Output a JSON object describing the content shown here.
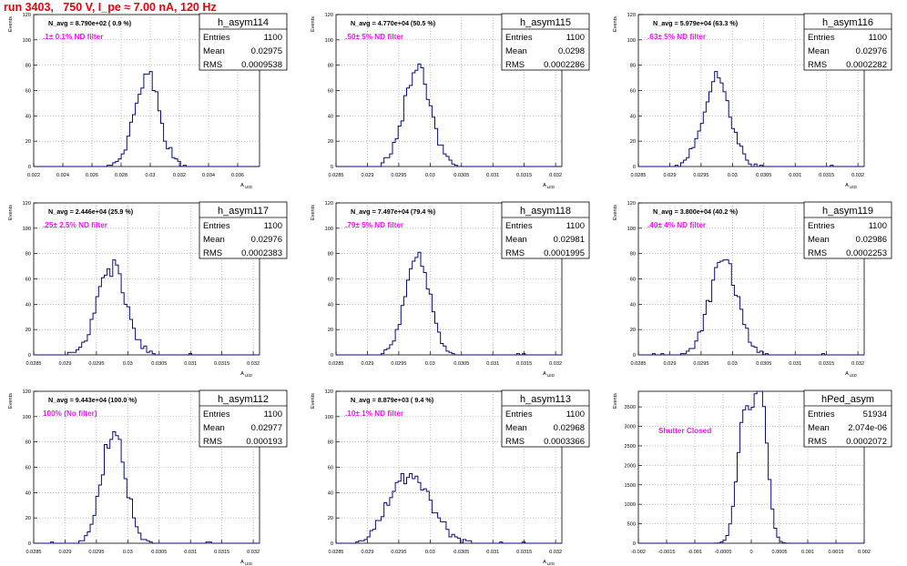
{
  "run_title": "run 3403,   750 V, I_pe ≈ 7.00 nA, 120 Hz",
  "colors": {
    "histogram": "#0a0a7a",
    "filter_label": "#e619e6",
    "run_title": "#e8000b",
    "grid": "#9a9a9a"
  },
  "stats_labels": {
    "entries": "Entries",
    "mean": "Mean",
    "rms": "RMS"
  },
  "chart_data": [
    {
      "type": "histogram",
      "name": "h_asym114",
      "navg": "N_avg = 8.790e+02 ( 0.9 %)",
      "label": ".1± 0.1% ND filter",
      "entries": "1100",
      "mean": "0.02975",
      "rms": "0.0009538",
      "xlabel": "A_LED",
      "ylabel": "Events",
      "xlim": [
        0.022,
        0.0375
      ],
      "ylim": [
        0,
        120
      ],
      "xticks": [
        0.022,
        0.024,
        0.026,
        0.028,
        0.03,
        0.032,
        0.034,
        0.036
      ],
      "xtick_labels": [
        "0.022",
        "0.024",
        "0.026",
        "0.028",
        "0.03",
        "0.032",
        "0.034",
        "0.036"
      ],
      "yticks": [
        0,
        20,
        40,
        60,
        80,
        100,
        120
      ],
      "ytick_labels": [
        "0",
        "20",
        "40",
        "60",
        "80",
        "100",
        "120"
      ],
      "shape": {
        "center": 0.0298,
        "sigma": 0.00085,
        "peak": 72,
        "bins": 80,
        "seed": 11
      },
      "grid": true
    },
    {
      "type": "histogram",
      "name": "h_asym115",
      "navg": "N_avg = 4.770e+04 (50.5 %)",
      "label": ".50± 5% ND filter",
      "entries": "1100",
      "mean": "0.0298",
      "rms": "0.0002286",
      "xlabel": "A_LED",
      "ylabel": "Events",
      "xlim": [
        0.0285,
        0.0321
      ],
      "ylim": [
        0,
        120
      ],
      "xticks": [
        0.0285,
        0.029,
        0.0295,
        0.03,
        0.0305,
        0.031,
        0.0315,
        0.032
      ],
      "xtick_labels": [
        "0.0285",
        "0.029",
        "0.0295",
        "0.03",
        "0.0305",
        "0.031",
        "0.0315",
        "0.032"
      ],
      "yticks": [
        0,
        20,
        40,
        60,
        80,
        100,
        120
      ],
      "ytick_labels": [
        "0",
        "20",
        "40",
        "60",
        "80",
        "100",
        "120"
      ],
      "shape": {
        "center": 0.02979,
        "sigma": 0.00022,
        "peak": 76,
        "bins": 80,
        "seed": 23
      },
      "grid": true
    },
    {
      "type": "histogram",
      "name": "h_asym116",
      "navg": "N_avg = 5.979e+04 (63.3 %)",
      "label": ".63± 5% ND filter",
      "entries": "1100",
      "mean": "0.02976",
      "rms": "0.0002282",
      "xlabel": "A_LED",
      "ylabel": "Events",
      "xlim": [
        0.0285,
        0.0321
      ],
      "ylim": [
        0,
        120
      ],
      "xticks": [
        0.0285,
        0.029,
        0.0295,
        0.03,
        0.0305,
        0.031,
        0.0315,
        0.032
      ],
      "xtick_labels": [
        "0.0285",
        "0.029",
        "0.0295",
        "0.03",
        "0.0305",
        "0.031",
        "0.0315",
        "0.032"
      ],
      "yticks": [
        0,
        20,
        40,
        60,
        80,
        100,
        120
      ],
      "ytick_labels": [
        "0",
        "20",
        "40",
        "60",
        "80",
        "100",
        "120"
      ],
      "shape": {
        "center": 0.02975,
        "sigma": 0.00022,
        "peak": 68,
        "bins": 80,
        "seed": 37
      },
      "grid": true
    },
    {
      "type": "histogram",
      "name": "h_asym117",
      "navg": "N_avg = 2.446e+04 (25.9 %)",
      "label": ".25± 2.5% ND filter",
      "entries": "1100",
      "mean": "0.02976",
      "rms": "0.0002383",
      "xlabel": "A_LED",
      "ylabel": "Events",
      "xlim": [
        0.0285,
        0.0321
      ],
      "ylim": [
        0,
        120
      ],
      "xticks": [
        0.0285,
        0.029,
        0.0295,
        0.03,
        0.0305,
        0.031,
        0.0315,
        0.032
      ],
      "xtick_labels": [
        "0.0285",
        "0.029",
        "0.0295",
        "0.03",
        "0.0305",
        "0.031",
        "0.0315",
        "0.032"
      ],
      "yticks": [
        0,
        20,
        40,
        60,
        80,
        100,
        120
      ],
      "ytick_labels": [
        "0",
        "20",
        "40",
        "60",
        "80",
        "100",
        "120"
      ],
      "shape": {
        "center": 0.02975,
        "sigma": 0.00023,
        "peak": 70,
        "bins": 80,
        "seed": 41
      },
      "grid": true
    },
    {
      "type": "histogram",
      "name": "h_asym118",
      "navg": "N_avg = 7.497e+04 (79.4 %)",
      "label": ".79± 5% ND filter",
      "entries": "1100",
      "mean": "0.02981",
      "rms": "0.0001995",
      "xlabel": "A_LED",
      "ylabel": "Events",
      "xlim": [
        0.0285,
        0.0321
      ],
      "ylim": [
        0,
        120
      ],
      "xticks": [
        0.0285,
        0.029,
        0.0295,
        0.03,
        0.0305,
        0.031,
        0.0315,
        0.032
      ],
      "xtick_labels": [
        "0.0285",
        "0.029",
        "0.0295",
        "0.03",
        "0.0305",
        "0.031",
        "0.0315",
        "0.032"
      ],
      "yticks": [
        0,
        20,
        40,
        60,
        80,
        100,
        120
      ],
      "ytick_labels": [
        "0",
        "20",
        "40",
        "60",
        "80",
        "100",
        "120"
      ],
      "shape": {
        "center": 0.0298,
        "sigma": 0.0002,
        "peak": 76,
        "bins": 80,
        "seed": 53
      },
      "grid": true
    },
    {
      "type": "histogram",
      "name": "h_asym119",
      "navg": "N_avg = 3.800e+04 (40.2 %)",
      "label": ".40± 4% ND filter",
      "entries": "1100",
      "mean": "0.02986",
      "rms": "0.0002253",
      "xlabel": "A_LED",
      "ylabel": "Events",
      "xlim": [
        0.0285,
        0.0321
      ],
      "ylim": [
        0,
        120
      ],
      "xticks": [
        0.0285,
        0.029,
        0.0295,
        0.03,
        0.0305,
        0.031,
        0.0315,
        0.032
      ],
      "xtick_labels": [
        "0.0285",
        "0.029",
        "0.0295",
        "0.03",
        "0.0305",
        "0.031",
        "0.0315",
        "0.032"
      ],
      "yticks": [
        0,
        20,
        40,
        60,
        80,
        100,
        120
      ],
      "ytick_labels": [
        "0",
        "20",
        "40",
        "60",
        "80",
        "100",
        "120"
      ],
      "shape": {
        "center": 0.02985,
        "sigma": 0.00022,
        "peak": 75,
        "bins": 80,
        "seed": 67
      },
      "grid": true
    },
    {
      "type": "histogram",
      "name": "h_asym112",
      "navg": "N_avg = 9.443e+04 (100.0 %)",
      "label": "100% (No filter)",
      "entries": "1100",
      "mean": "0.02977",
      "rms": "0.000193",
      "xlabel": "A_LED",
      "ylabel": "Events",
      "xlim": [
        0.0285,
        0.0321
      ],
      "ylim": [
        0,
        120
      ],
      "xticks": [
        0.0285,
        0.029,
        0.0295,
        0.03,
        0.0305,
        0.031,
        0.0315,
        0.032
      ],
      "xtick_labels": [
        "0.0285",
        "0.029",
        "0.0295",
        "0.03",
        "0.0305",
        "0.031",
        "0.0315",
        "0.032"
      ],
      "yticks": [
        0,
        20,
        40,
        60,
        80,
        100,
        120
      ],
      "ytick_labels": [
        "0",
        "20",
        "40",
        "60",
        "80",
        "100",
        "120"
      ],
      "shape": {
        "center": 0.02977,
        "sigma": 0.00019,
        "peak": 88,
        "bins": 80,
        "seed": 79
      },
      "grid": true
    },
    {
      "type": "histogram",
      "name": "h_asym113",
      "navg": "N_avg = 8.879e+03 ( 9.4 %)",
      "label": ".10± 1% ND filter",
      "entries": "1100",
      "mean": "0.02968",
      "rms": "0.0003366",
      "xlabel": "A_LED",
      "ylabel": "Events",
      "xlim": [
        0.0285,
        0.0321
      ],
      "ylim": [
        0,
        120
      ],
      "xticks": [
        0.0285,
        0.029,
        0.0295,
        0.03,
        0.0305,
        0.031,
        0.0315,
        0.032
      ],
      "xtick_labels": [
        "0.0285",
        "0.029",
        "0.0295",
        "0.03",
        "0.0305",
        "0.031",
        "0.0315",
        "0.032"
      ],
      "yticks": [
        0,
        20,
        40,
        60,
        80,
        100,
        120
      ],
      "ytick_labels": [
        "0",
        "20",
        "40",
        "60",
        "80",
        "100",
        "120"
      ],
      "shape": {
        "center": 0.02968,
        "sigma": 0.00033,
        "peak": 55,
        "bins": 80,
        "seed": 97
      },
      "grid": true
    },
    {
      "type": "histogram",
      "name": "hPed_asym",
      "navg": "",
      "label": "Shutter Closed",
      "entries": "51934",
      "mean": "2.074e-06",
      "rms": "0.0002072",
      "xlabel": "",
      "ylabel": "Events",
      "xlim": [
        -0.002,
        0.002
      ],
      "ylim": [
        0,
        3900
      ],
      "xticks": [
        -0.002,
        -0.0015,
        -0.001,
        -0.0005,
        0,
        0.0005,
        0.001,
        0.0015,
        0.002
      ],
      "xtick_labels": [
        "-0.002",
        "-0.0015",
        "-0.001",
        "-0.0005",
        "0",
        "0.0005",
        "0.001",
        "0.0015",
        "0.002"
      ],
      "yticks": [
        0,
        500,
        1000,
        1500,
        2000,
        2500,
        3000,
        3500
      ],
      "ytick_labels": [
        "0",
        "500",
        "1000",
        "1500",
        "2000",
        "2500",
        "3000",
        "3500"
      ],
      "shape": {
        "centers": [
          -0.00012,
          0.00017
        ],
        "sigmas": [
          0.00013,
          0.00012
        ],
        "peaks": [
          3250,
          3750
        ],
        "bins": 80,
        "seed": 131
      },
      "grid": true
    }
  ]
}
